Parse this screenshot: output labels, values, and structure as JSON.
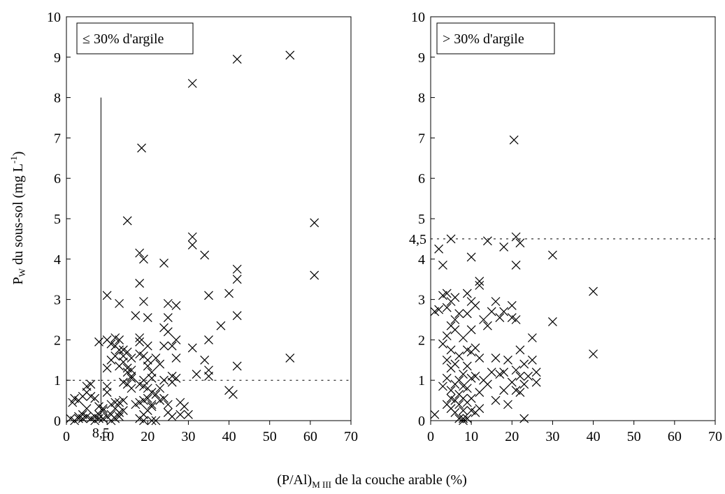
{
  "chart_data": [
    {
      "type": "scatter",
      "legend_text": "≤ 30% d'argile",
      "xlim": [
        0,
        70
      ],
      "ylim": [
        0,
        10
      ],
      "xticks": [
        0,
        10,
        20,
        30,
        40,
        50,
        60,
        70
      ],
      "yticks": [
        0,
        1,
        2,
        3,
        4,
        5,
        6,
        7,
        8,
        9,
        10
      ],
      "ylabel_main": "P",
      "ylabel_sub": "W",
      "ylabel_rest": " du sous-sol (mg L",
      "ylabel_sup": "-1",
      "ylabel_close": ")",
      "reference_lines": [
        {
          "orientation": "vertical",
          "x": 8.5,
          "from": 0,
          "to": 8,
          "style": "solid"
        },
        {
          "orientation": "horizontal",
          "y": 1,
          "from": 8.5,
          "to": 70,
          "style": "dashed"
        },
        {
          "orientation": "horizontal",
          "y": 1,
          "from": 0,
          "to": 8.5,
          "style": "dashed"
        }
      ],
      "annotation": {
        "text": "8,5",
        "x": 8.5
      },
      "series": [
        {
          "marker": "x",
          "points": [
            [
              1,
              0.05
            ],
            [
              2,
              0
            ],
            [
              1.5,
              0.45
            ],
            [
              2,
              0.55
            ],
            [
              3,
              0.5
            ],
            [
              4,
              0.6
            ],
            [
              5,
              0.85
            ],
            [
              6,
              0.9
            ],
            [
              5,
              0.7
            ],
            [
              4,
              0.15
            ],
            [
              3,
              0.05
            ],
            [
              5,
              0.1
            ],
            [
              6,
              0.05
            ],
            [
              7,
              0
            ],
            [
              8,
              0.05
            ],
            [
              6,
              0.6
            ],
            [
              7,
              0.55
            ],
            [
              8,
              0.35
            ],
            [
              9,
              0.25
            ],
            [
              8,
              0.15
            ],
            [
              5,
              0.3
            ],
            [
              4,
              0.05
            ],
            [
              3,
              0.1
            ],
            [
              7,
              0.1
            ],
            [
              9,
              0.05
            ],
            [
              10,
              0.1
            ],
            [
              11,
              0
            ],
            [
              11,
              0.15
            ],
            [
              12,
              0.3
            ],
            [
              13,
              0.45
            ],
            [
              14,
              0.5
            ],
            [
              13,
              0.2
            ],
            [
              12,
              0.05
            ],
            [
              11,
              0.4
            ],
            [
              9,
              0.3
            ],
            [
              10,
              0.7
            ],
            [
              12,
              0.45
            ],
            [
              13,
              0.1
            ],
            [
              14,
              0.25
            ],
            [
              10,
              0.85
            ],
            [
              10,
              1.3
            ],
            [
              11,
              1.5
            ],
            [
              12,
              1.6
            ],
            [
              11,
              1.9
            ],
            [
              12,
              2.05
            ],
            [
              13,
              2.0
            ],
            [
              14,
              1.75
            ],
            [
              15,
              1.7
            ],
            [
              16,
              1.55
            ],
            [
              14,
              1.6
            ],
            [
              13,
              1.35
            ],
            [
              15,
              1.2
            ],
            [
              16,
              1.1
            ],
            [
              14,
              0.95
            ],
            [
              15,
              0.9
            ],
            [
              16,
              0.8
            ],
            [
              8,
              1.95
            ],
            [
              10,
              2.0
            ],
            [
              12,
              1.85
            ],
            [
              13,
              1.75
            ],
            [
              14,
              1.45
            ],
            [
              15,
              1.3
            ],
            [
              16,
              1.25
            ],
            [
              16,
              1.05
            ],
            [
              10,
              3.1
            ],
            [
              13,
              2.9
            ],
            [
              15,
              4.95
            ],
            [
              17,
              2.6
            ],
            [
              18,
              1.95
            ],
            [
              18,
              1.65
            ],
            [
              19,
              1.6
            ],
            [
              20,
              1.5
            ],
            [
              20,
              1.35
            ],
            [
              21,
              1.2
            ],
            [
              19,
              1.0
            ],
            [
              18,
              0.9
            ],
            [
              19,
              0.85
            ],
            [
              20,
              0.8
            ],
            [
              21,
              0.7
            ],
            [
              20,
              0.55
            ],
            [
              19,
              0.5
            ],
            [
              18,
              0.45
            ],
            [
              17,
              0.4
            ],
            [
              21,
              0.35
            ],
            [
              20,
              0.25
            ],
            [
              19,
              0.15
            ],
            [
              18,
              0.05
            ],
            [
              19,
              0
            ],
            [
              21,
              0
            ],
            [
              22,
              0
            ],
            [
              21,
              0.4
            ],
            [
              22,
              0.65
            ],
            [
              23,
              0.5
            ],
            [
              18,
              4.15
            ],
            [
              19,
              4.0
            ],
            [
              18,
              3.4
            ],
            [
              19,
              2.95
            ],
            [
              20,
              2.55
            ],
            [
              18,
              2.05
            ],
            [
              20,
              1.85
            ],
            [
              21,
              1.05
            ],
            [
              22,
              1.55
            ],
            [
              23,
              1.4
            ],
            [
              23,
              0.8
            ],
            [
              24,
              1.85
            ],
            [
              24,
              1.0
            ],
            [
              24,
              0.55
            ],
            [
              25,
              0.4
            ],
            [
              25,
              0.2
            ],
            [
              26,
              0.1
            ],
            [
              24,
              2.3
            ],
            [
              25,
              2.2
            ],
            [
              25,
              2.55
            ],
            [
              25,
              2.9
            ],
            [
              26,
              1.85
            ],
            [
              26,
              1.1
            ],
            [
              26,
              0.95
            ],
            [
              27,
              1.05
            ],
            [
              27,
              1.55
            ],
            [
              27,
              2.0
            ],
            [
              27,
              2.85
            ],
            [
              24,
              3.9
            ],
            [
              28,
              0.45
            ],
            [
              28,
              0.15
            ],
            [
              29,
              0.35
            ],
            [
              30,
              0.15
            ],
            [
              31,
              1.8
            ],
            [
              31,
              4.35
            ],
            [
              31,
              4.55
            ],
            [
              32,
              1.15
            ],
            [
              31,
              8.35
            ],
            [
              34,
              4.1
            ],
            [
              34,
              1.5
            ],
            [
              35,
              1.25
            ],
            [
              35,
              1.1
            ],
            [
              35,
              2.0
            ],
            [
              35,
              3.1
            ],
            [
              38,
              2.35
            ],
            [
              40,
              3.15
            ],
            [
              40,
              0.75
            ],
            [
              41,
              0.65
            ],
            [
              42,
              1.35
            ],
            [
              42,
              2.6
            ],
            [
              42,
              3.5
            ],
            [
              42,
              3.75
            ],
            [
              42,
              8.95
            ],
            [
              55,
              9.05
            ],
            [
              55,
              1.55
            ],
            [
              61,
              4.9
            ],
            [
              61,
              3.6
            ],
            [
              18.5,
              6.75
            ]
          ]
        }
      ]
    },
    {
      "type": "scatter",
      "legend_text": "> 30% d'argile",
      "xlim": [
        0,
        70
      ],
      "ylim": [
        0,
        10
      ],
      "xticks": [
        0,
        10,
        20,
        30,
        40,
        50,
        60,
        70
      ],
      "yticks": [
        0,
        1,
        2,
        3,
        4,
        5,
        6,
        7,
        8,
        9,
        10
      ],
      "reference_lines": [
        {
          "orientation": "horizontal",
          "y": 4.5,
          "from": 0,
          "to": 70,
          "style": "dashed"
        }
      ],
      "annotation": {
        "text": "4,5",
        "y": 4.5
      },
      "series": [
        {
          "marker": "x",
          "points": [
            [
              1,
              0.15
            ],
            [
              1,
              2.7
            ],
            [
              2,
              2.75
            ],
            [
              2,
              4.25
            ],
            [
              3,
              3.85
            ],
            [
              3,
              3.1
            ],
            [
              3,
              1.9
            ],
            [
              3,
              0.85
            ],
            [
              4,
              0.4
            ],
            [
              4,
              1.05
            ],
            [
              4,
              1.5
            ],
            [
              4,
              2.1
            ],
            [
              4,
              2.8
            ],
            [
              4,
              3.15
            ],
            [
              5,
              0.3
            ],
            [
              5,
              0.55
            ],
            [
              5,
              0.75
            ],
            [
              5,
              1.3
            ],
            [
              5,
              1.75
            ],
            [
              5,
              2.35
            ],
            [
              5,
              2.95
            ],
            [
              5,
              4.5
            ],
            [
              6,
              0.2
            ],
            [
              6,
              0.5
            ],
            [
              6,
              0.9
            ],
            [
              6,
              1.4
            ],
            [
              6,
              2.25
            ],
            [
              6,
              2.5
            ],
            [
              6,
              3.05
            ],
            [
              7,
              0.05
            ],
            [
              7,
              0.4
            ],
            [
              7,
              0.65
            ],
            [
              7,
              1.0
            ],
            [
              7,
              1.6
            ],
            [
              7,
              2.65
            ],
            [
              8,
              0
            ],
            [
              8,
              0.05
            ],
            [
              8,
              0.25
            ],
            [
              8,
              0.55
            ],
            [
              8,
              0.85
            ],
            [
              8,
              1.15
            ],
            [
              8,
              2.05
            ],
            [
              9,
              0.05
            ],
            [
              9,
              0.45
            ],
            [
              9,
              0.8
            ],
            [
              9,
              1.35
            ],
            [
              9,
              1.75
            ],
            [
              9,
              2.65
            ],
            [
              9,
              3.15
            ],
            [
              10,
              0.25
            ],
            [
              10,
              0.55
            ],
            [
              10,
              1.05
            ],
            [
              10,
              1.7
            ],
            [
              10,
              2.25
            ],
            [
              10,
              2.95
            ],
            [
              10,
              4.05
            ],
            [
              11,
              0.2
            ],
            [
              11,
              1.1
            ],
            [
              11,
              1.8
            ],
            [
              11,
              2.85
            ],
            [
              12,
              0.3
            ],
            [
              12,
              0.7
            ],
            [
              12,
              1.55
            ],
            [
              12,
              3.35
            ],
            [
              12,
              3.45
            ],
            [
              13,
              1.0
            ],
            [
              13,
              2.5
            ],
            [
              14,
              0.9
            ],
            [
              14,
              2.35
            ],
            [
              14,
              4.45
            ],
            [
              15,
              1.2
            ],
            [
              15,
              2.7
            ],
            [
              16,
              0.5
            ],
            [
              16,
              1.55
            ],
            [
              16,
              2.95
            ],
            [
              17,
              1.15
            ],
            [
              17,
              2.55
            ],
            [
              18,
              0.75
            ],
            [
              18,
              1.2
            ],
            [
              18,
              2.7
            ],
            [
              18,
              4.3
            ],
            [
              19,
              0.4
            ],
            [
              19,
              1.5
            ],
            [
              20,
              0.95
            ],
            [
              20,
              2.55
            ],
            [
              20,
              2.85
            ],
            [
              21,
              0.75
            ],
            [
              21,
              1.25
            ],
            [
              21,
              2.5
            ],
            [
              21,
              3.85
            ],
            [
              21,
              4.55
            ],
            [
              22,
              0.7
            ],
            [
              22,
              1.1
            ],
            [
              22,
              1.75
            ],
            [
              22,
              4.4
            ],
            [
              23,
              0.05
            ],
            [
              23,
              0.9
            ],
            [
              23,
              1.4
            ],
            [
              24,
              1.1
            ],
            [
              25,
              1.5
            ],
            [
              25,
              2.05
            ],
            [
              26,
              1.2
            ],
            [
              26,
              0.95
            ],
            [
              30,
              2.45
            ],
            [
              30,
              4.1
            ],
            [
              40,
              3.2
            ],
            [
              40,
              1.65
            ],
            [
              20.5,
              6.95
            ]
          ]
        }
      ]
    }
  ],
  "shared_xlabel": {
    "main": "(P/Al)",
    "sub": "M III",
    "rest": " de la couche arable (%)"
  }
}
